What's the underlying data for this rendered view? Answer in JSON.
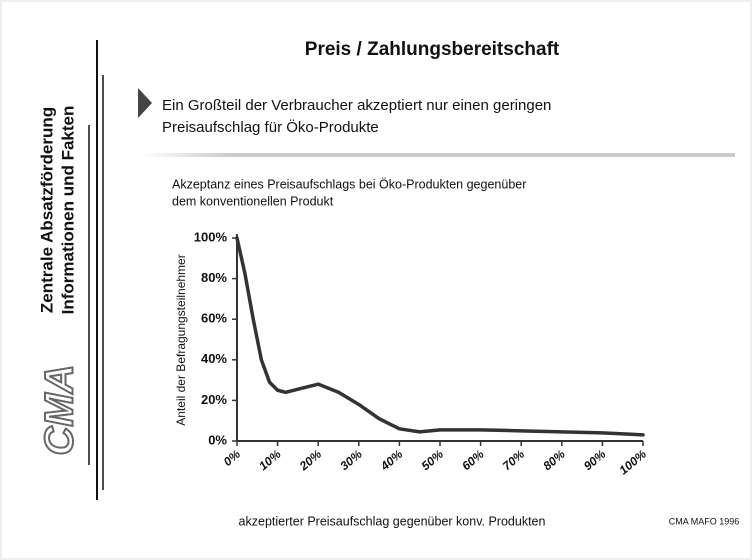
{
  "sidebar": {
    "line1": "Zentrale Absatzförderung",
    "line2": "Informationen und Fakten",
    "logo": "CMA"
  },
  "slide": {
    "title": "Preis / Zahlungsbereitschaft",
    "bullet": [
      "Ein Großteil der Verbraucher akzeptiert nur einen geringen",
      "Preisaufschlag für Öko-Produkte"
    ],
    "source": "CMA MAFO 1996"
  },
  "chart_data": {
    "type": "line",
    "title": [
      "Akzeptanz eines Preisaufschlags bei Öko-Produkten gegenüber",
      "dem konventionellen Produkt"
    ],
    "x_label": "akzeptierter Preisaufschlag gegenüber konv. Produkten",
    "y_label": "Anteil der Befragungsteilnehmer",
    "xlim": [
      0,
      100
    ],
    "ylim": [
      0,
      100
    ],
    "xticks": [
      {
        "value": 0,
        "label": "0%"
      },
      {
        "value": 10,
        "label": "10%"
      },
      {
        "value": 20,
        "label": "20%"
      },
      {
        "value": 30,
        "label": "30%"
      },
      {
        "value": 40,
        "label": "40%"
      },
      {
        "value": 50,
        "label": "50%"
      },
      {
        "value": 60,
        "label": "60%"
      },
      {
        "value": 70,
        "label": "70%"
      },
      {
        "value": 80,
        "label": "80%"
      },
      {
        "value": 90,
        "label": "90%"
      },
      {
        "value": 100,
        "label": "100%"
      }
    ],
    "yticks": [
      {
        "value": 0,
        "label": "0%"
      },
      {
        "value": 20,
        "label": "20%"
      },
      {
        "value": 40,
        "label": "40%"
      },
      {
        "value": 60,
        "label": "60%"
      },
      {
        "value": 80,
        "label": "80%"
      },
      {
        "value": 100,
        "label": "100%"
      }
    ],
    "grid": false,
    "x": [
      0,
      2,
      4,
      6,
      8,
      10,
      12,
      16,
      20,
      25,
      30,
      35,
      40,
      45,
      50,
      60,
      70,
      80,
      90,
      100
    ],
    "series": [
      {
        "name": "Anteil",
        "color": "#333333",
        "values": [
          100,
          82,
          60,
          40,
          29,
          25,
          24,
          26,
          28,
          24,
          18,
          11,
          6,
          4.5,
          5.5,
          5.5,
          5,
          4.5,
          4,
          3
        ]
      }
    ]
  }
}
